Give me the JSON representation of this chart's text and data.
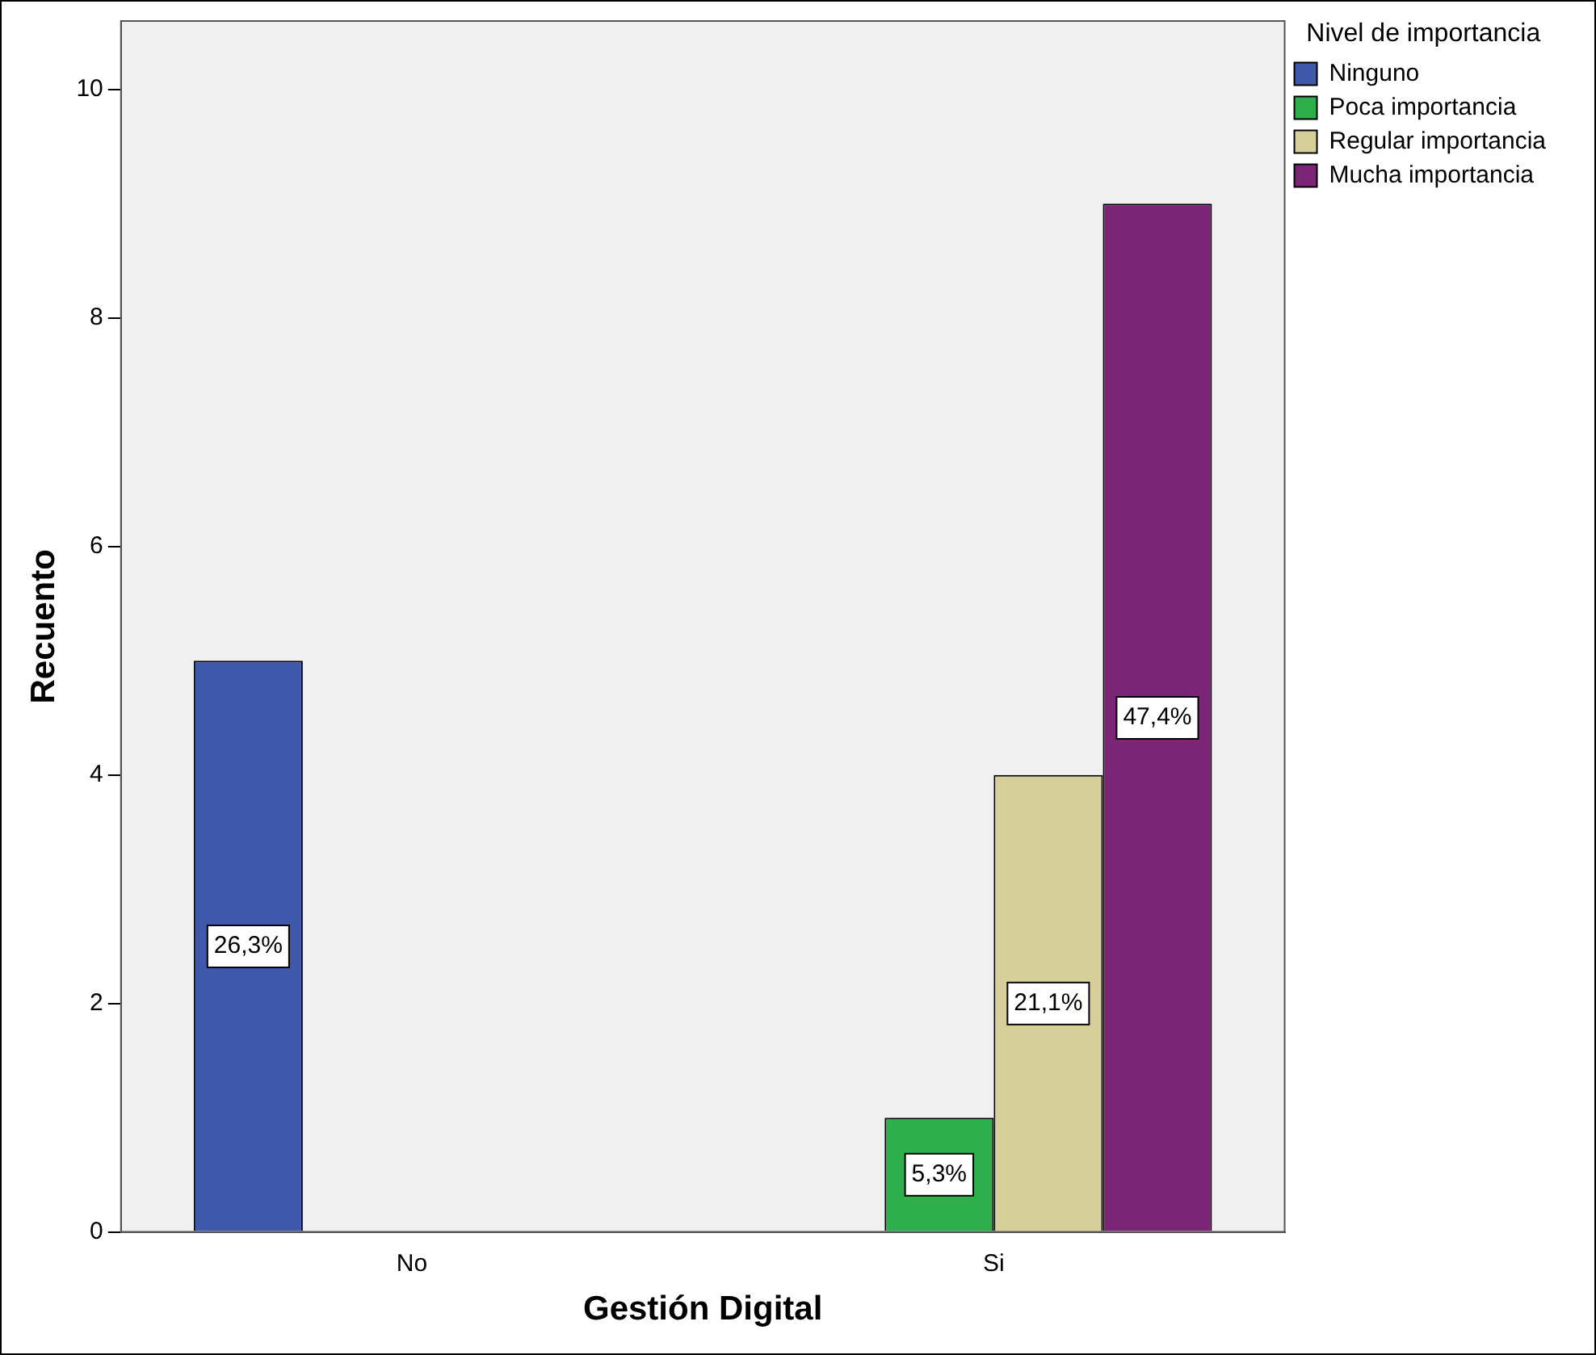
{
  "chart_data": {
    "type": "bar",
    "xlabel": "Gestión Digital",
    "ylabel": "Recuento",
    "legend_title": "Nivel de importancia",
    "categories": [
      "No",
      "Si"
    ],
    "series": [
      {
        "name": "Ninguno",
        "color": "#3e58ac",
        "values": [
          5,
          null
        ]
      },
      {
        "name": "Poca importancia",
        "color": "#2db04b",
        "values": [
          null,
          1
        ]
      },
      {
        "name": "Regular importancia",
        "color": "#d6cf99",
        "values": [
          null,
          4
        ]
      },
      {
        "name": "Mucha importancia",
        "color": "#7b2576",
        "values": [
          null,
          9
        ]
      }
    ],
    "annotations": [
      "26,3%",
      "5,3%",
      "21,1%",
      "47,4%"
    ],
    "ylim": [
      0,
      10.6
    ],
    "yticks": [
      0,
      2,
      4,
      6,
      8,
      10
    ],
    "grid": false,
    "legend": "top right"
  }
}
